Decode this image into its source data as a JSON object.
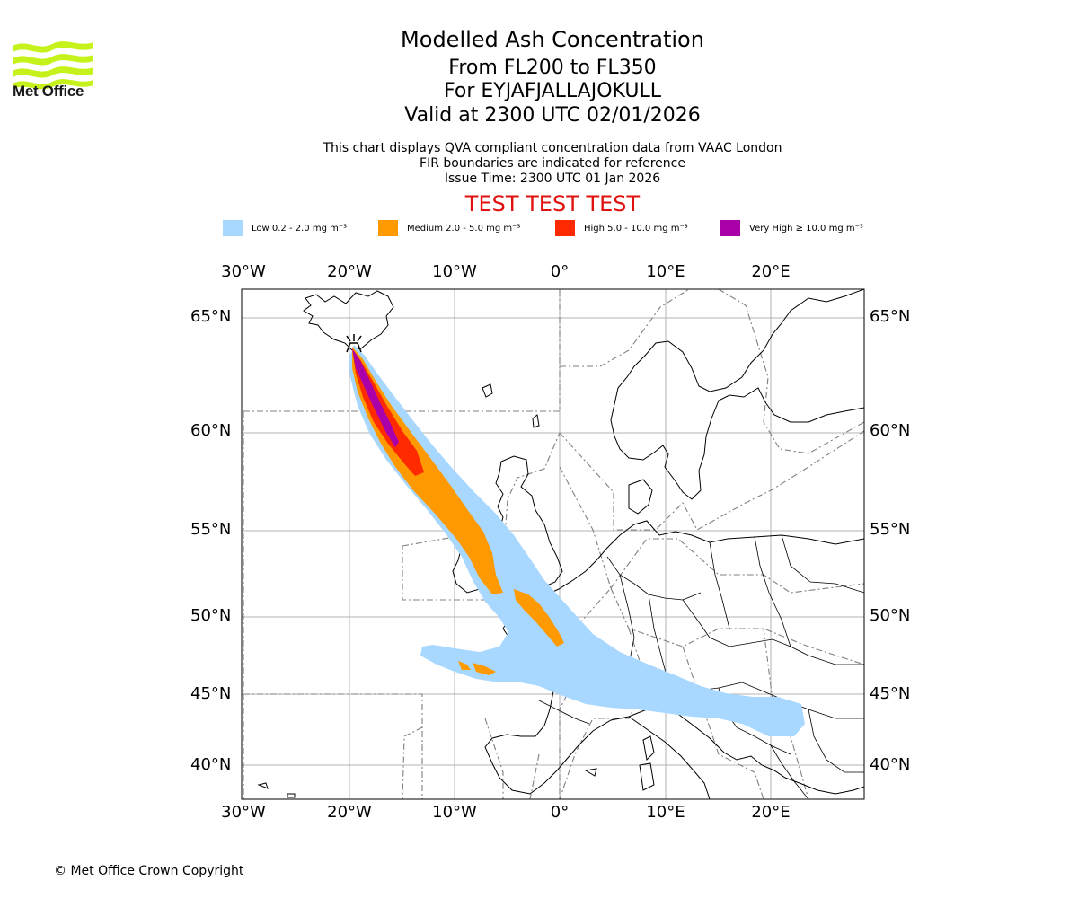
{
  "logo": {
    "brand": "Met Office",
    "colors": {
      "waves": "#c6f21c",
      "text": "#1b1b1b"
    }
  },
  "header": {
    "title": "Modelled Ash Concentration",
    "flight_levels": "From FL200 to FL350",
    "volcano_line": "For EYJAFJALLAJOKULL",
    "valid_line": "Valid at 2300 UTC 02/01/2026",
    "desc1": "This chart displays QVA compliant concentration data from VAAC London",
    "desc2": "FIR boundaries are indicated for reference",
    "issue_time": "Issue Time: 2300 UTC 01 Jan 2026",
    "test_banner": "TEST TEST TEST"
  },
  "legend": [
    {
      "label": "Low 0.2 - 2.0 mg m⁻³",
      "color": "#a8d8ff"
    },
    {
      "label": "Medium 2.0 - 5.0 mg m⁻³",
      "color": "#ff9900"
    },
    {
      "label": "High 5.0 - 10.0 mg m⁻³",
      "color": "#ff2a00"
    },
    {
      "label": "Very High ≥ 10.0 mg m⁻³",
      "color": "#aa00aa"
    }
  ],
  "map": {
    "lon_labels": [
      "30°W",
      "20°W",
      "10°W",
      "0°",
      "10°E",
      "20°E"
    ],
    "lat_labels": [
      "65°N",
      "60°N",
      "55°N",
      "50°N",
      "45°N",
      "40°N"
    ],
    "lon_range": [
      -30,
      29
    ],
    "lat_range": [
      38,
      66.5
    ],
    "volcano": {
      "name": "EYJAFJALLAJOKULL",
      "lon": -19.6,
      "lat": 63.6
    }
  },
  "footer": {
    "copyright": "© Met Office Crown Copyright"
  }
}
